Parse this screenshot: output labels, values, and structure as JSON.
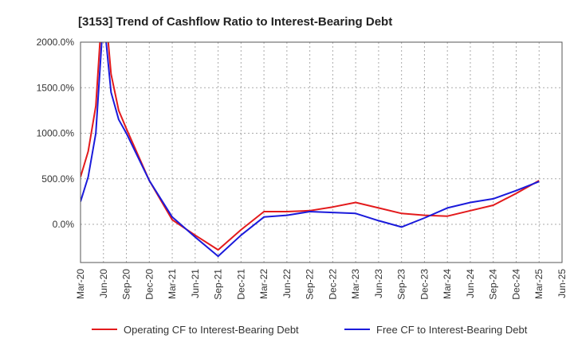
{
  "chart_data": {
    "type": "line",
    "title": "[3153]  Trend of Cashflow Ratio to Interest-Bearing Debt",
    "xlabel": "",
    "ylabel": "",
    "x_ticks": [
      "Mar-20",
      "Jun-20",
      "Sep-20",
      "Dec-20",
      "Mar-21",
      "Jun-21",
      "Sep-21",
      "Dec-21",
      "Mar-22",
      "Jun-22",
      "Sep-22",
      "Dec-22",
      "Mar-23",
      "Jun-23",
      "Sep-23",
      "Dec-23",
      "Mar-24",
      "Jun-24",
      "Sep-24",
      "Dec-24",
      "Mar-25",
      "Jun-25"
    ],
    "y_ticks": [
      "2000.0%",
      "1500.0%",
      "1000.0%",
      "500.0%",
      "0.0%"
    ],
    "y_tick_values": [
      2000,
      1500,
      1000,
      500,
      0
    ],
    "ylim": [
      -420,
      2000
    ],
    "grid": true,
    "legend_position": "bottom",
    "series": [
      {
        "name": "Operating CF to Interest-Bearing Debt",
        "color": "#e31a1c",
        "points": [
          [
            "Mar-20",
            520
          ],
          [
            "Apr-20",
            800
          ],
          [
            "May-20",
            1300
          ],
          [
            "Jun-20",
            2600
          ],
          [
            "Jul-20",
            1650
          ],
          [
            "Aug-20",
            1250
          ],
          [
            "Sep-20",
            1050
          ],
          [
            "Dec-20",
            480
          ],
          [
            "Mar-21",
            50
          ],
          [
            "Jun-21",
            -120
          ],
          [
            "Sep-21",
            -280
          ],
          [
            "Dec-21",
            -60
          ],
          [
            "Mar-22",
            140
          ],
          [
            "Jun-22",
            140
          ],
          [
            "Sep-22",
            150
          ],
          [
            "Dec-22",
            190
          ],
          [
            "Mar-23",
            240
          ],
          [
            "Jun-23",
            180
          ],
          [
            "Sep-23",
            120
          ],
          [
            "Dec-23",
            100
          ],
          [
            "Mar-24",
            90
          ],
          [
            "Jun-24",
            150
          ],
          [
            "Sep-24",
            210
          ],
          [
            "Dec-24",
            340
          ],
          [
            "Mar-25",
            480
          ]
        ]
      },
      {
        "name": "Free CF to Interest-Bearing Debt",
        "color": "#1a1adb",
        "points": [
          [
            "Mar-20",
            250
          ],
          [
            "Apr-20",
            520
          ],
          [
            "May-20",
            1000
          ],
          [
            "Jun-20",
            2300
          ],
          [
            "Jul-20",
            1450
          ],
          [
            "Aug-20",
            1150
          ],
          [
            "Sep-20",
            1000
          ],
          [
            "Dec-20",
            480
          ],
          [
            "Mar-21",
            80
          ],
          [
            "Jun-21",
            -140
          ],
          [
            "Sep-21",
            -350
          ],
          [
            "Dec-21",
            -120
          ],
          [
            "Mar-22",
            80
          ],
          [
            "Jun-22",
            100
          ],
          [
            "Sep-22",
            140
          ],
          [
            "Dec-22",
            130
          ],
          [
            "Mar-23",
            120
          ],
          [
            "Jun-23",
            40
          ],
          [
            "Sep-23",
            -30
          ],
          [
            "Dec-23",
            70
          ],
          [
            "Mar-24",
            180
          ],
          [
            "Jun-24",
            240
          ],
          [
            "Sep-24",
            280
          ],
          [
            "Dec-24",
            370
          ],
          [
            "Mar-25",
            470
          ]
        ]
      }
    ]
  }
}
